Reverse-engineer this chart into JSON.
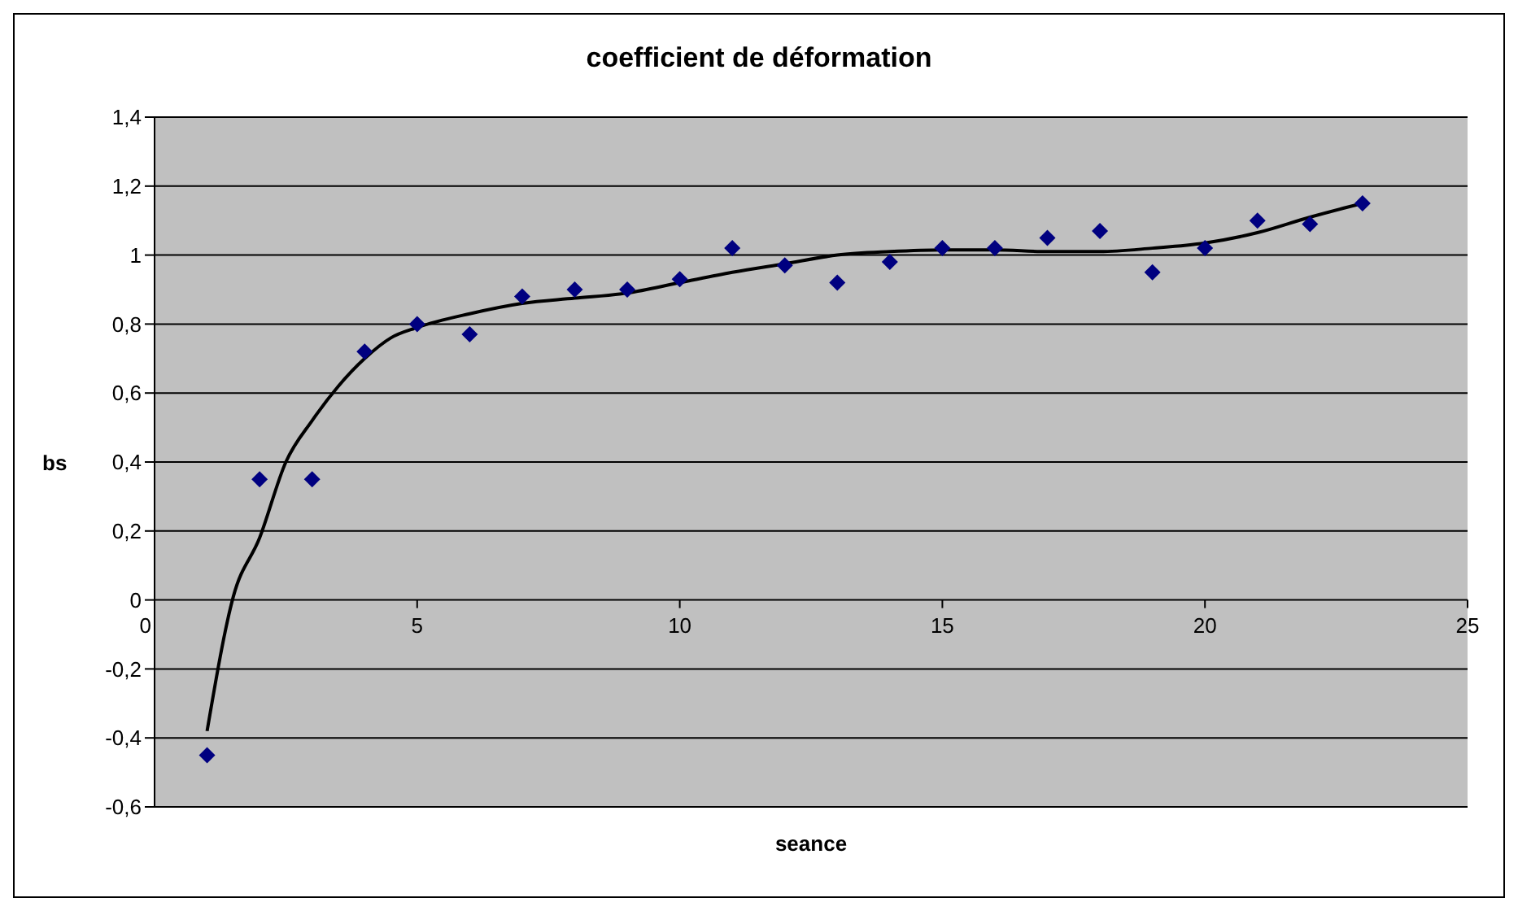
{
  "chart_data": {
    "type": "scatter",
    "title": "coefficient de déformation",
    "xlabel": "seance",
    "ylabel": "bs",
    "x": [
      1,
      2,
      3,
      4,
      5,
      6,
      7,
      8,
      9,
      10,
      11,
      12,
      13,
      14,
      15,
      16,
      17,
      18,
      19,
      20,
      21,
      22,
      23
    ],
    "series": [
      {
        "color": "#000080",
        "marker": "diamond",
        "values": [
          -0.45,
          0.35,
          0.35,
          0.72,
          0.8,
          0.77,
          0.88,
          0.9,
          0.9,
          0.93,
          1.02,
          0.97,
          0.92,
          0.98,
          1.02,
          1.02,
          1.05,
          1.07,
          0.95,
          1.02,
          1.1,
          1.09,
          1.15
        ]
      },
      {
        "type": "line",
        "color": "#000000",
        "marker": "none",
        "line_style": "solid",
        "x": [
          1,
          1.5,
          2,
          2.5,
          3,
          3.5,
          4,
          4.5,
          5,
          6,
          7,
          8,
          9,
          10,
          11,
          12,
          13,
          14,
          15,
          16,
          17,
          18,
          19,
          20,
          21,
          22,
          23
        ],
        "values": [
          -0.38,
          0.01,
          0.18,
          0.4,
          0.52,
          0.62,
          0.7,
          0.76,
          0.79,
          0.83,
          0.86,
          0.875,
          0.89,
          0.92,
          0.95,
          0.975,
          1.0,
          1.01,
          1.015,
          1.015,
          1.01,
          1.01,
          1.02,
          1.035,
          1.065,
          1.11,
          1.15
        ]
      }
    ],
    "xlim": [
      0,
      25
    ],
    "xticks": [
      0,
      5,
      10,
      15,
      20,
      25
    ],
    "ylim": [
      -0.6,
      1.4
    ],
    "yticks": [
      {
        "value": -0.6,
        "label": "-0,6"
      },
      {
        "value": -0.4,
        "label": "-0,4"
      },
      {
        "value": -0.2,
        "label": "-0,2"
      },
      0,
      {
        "value": 0.2,
        "label": "0,2"
      },
      {
        "value": 0.4,
        "label": "0,4"
      },
      {
        "value": 0.6,
        "label": "0,6"
      },
      {
        "value": 0.8,
        "label": "0,8"
      },
      1,
      {
        "value": 1.2,
        "label": "1,2"
      },
      {
        "value": 1.4,
        "label": "1,4"
      }
    ],
    "grid": "y",
    "legend": false
  }
}
